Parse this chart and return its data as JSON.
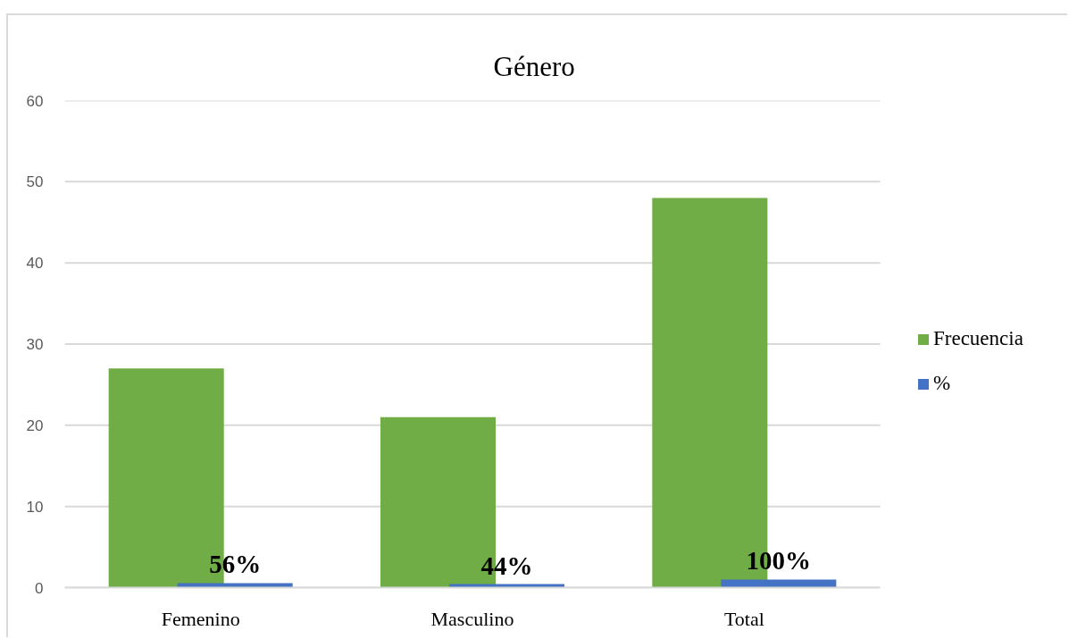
{
  "chart_data": {
    "type": "bar",
    "title": "Género",
    "categories": [
      "Femenino",
      "Masculino",
      "Total"
    ],
    "series": [
      {
        "name": "Frecuencia",
        "color": "#70ad47",
        "values": [
          27,
          21,
          48
        ]
      },
      {
        "name": "%",
        "color": "#4472c4",
        "values": [
          0.56,
          0.44,
          1
        ],
        "value_labels": [
          "56%",
          "44%",
          "100%"
        ]
      }
    ],
    "ylim": [
      0,
      60
    ],
    "yticks": [
      0,
      10,
      20,
      30,
      40,
      50,
      60
    ],
    "grid": "y",
    "legend": "right"
  }
}
